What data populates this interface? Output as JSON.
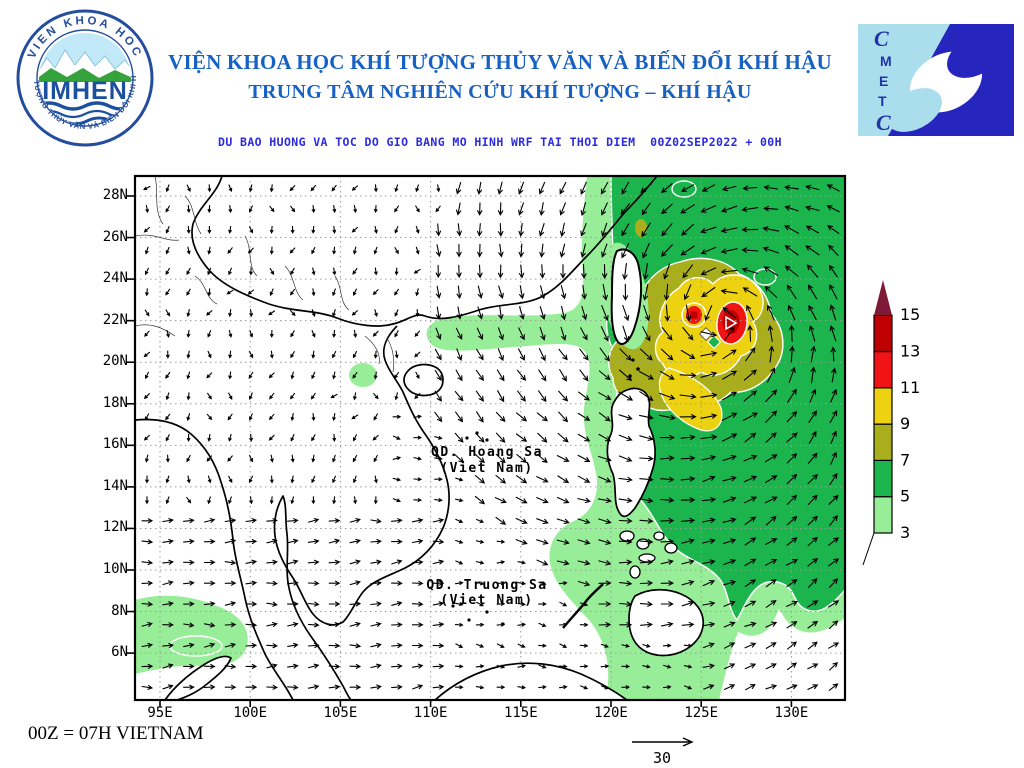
{
  "header": {
    "line1": "VIỆN KHOA HỌC KHÍ TƯỢNG THỦY VĂN VÀ BIẾN ĐỔI KHÍ HẬU",
    "line2": "TRUNG TÂM NGHIÊN CỨU KHÍ TƯỢNG – KHÍ HẬU",
    "title_color": "#1760C4"
  },
  "logos": {
    "imhen": {
      "arc_top": "VIEN KHOA HOC",
      "arc_bottom": "KHÍ TƯỢNG THỦY VĂN VÀ BIẾN ĐỔI KHÍ HẬU",
      "name": "IMHEN"
    },
    "cmetc": {
      "letters": [
        "C",
        "M",
        "E",
        "T",
        "C"
      ]
    }
  },
  "subtitle": "DU BAO HUONG VA TOC DO GIO BANG MO HINH WRF TAI THOI DIEM  00Z02SEP2022 + 00H",
  "map": {
    "lat_ticks": [
      "28N",
      "26N",
      "24N",
      "22N",
      "20N",
      "18N",
      "16N",
      "14N",
      "12N",
      "10N",
      "8N",
      "6N"
    ],
    "lon_ticks": [
      "95E",
      "100E",
      "105E",
      "110E",
      "115E",
      "120E",
      "125E",
      "130E"
    ],
    "labels": {
      "hoang_sa_line1": "QD. Hoang Sa",
      "hoang_sa_line2": "(Viet Nam)",
      "truong_sa_line1": "QD. Truong Sa",
      "truong_sa_line2": "(Viet Nam)"
    }
  },
  "colorbar": {
    "values": [
      "3",
      "5",
      "7",
      "9",
      "11",
      "13",
      "15"
    ],
    "colors": [
      "#98EE98",
      "#1CB44C",
      "#A9AE1C",
      "#EDD211",
      "#F01414",
      "#BE0000"
    ],
    "tip_color": "#7E1A38"
  },
  "footer": {
    "time_note": "00Z = 07H VIETNAM",
    "wind_scale_label": "30"
  }
}
